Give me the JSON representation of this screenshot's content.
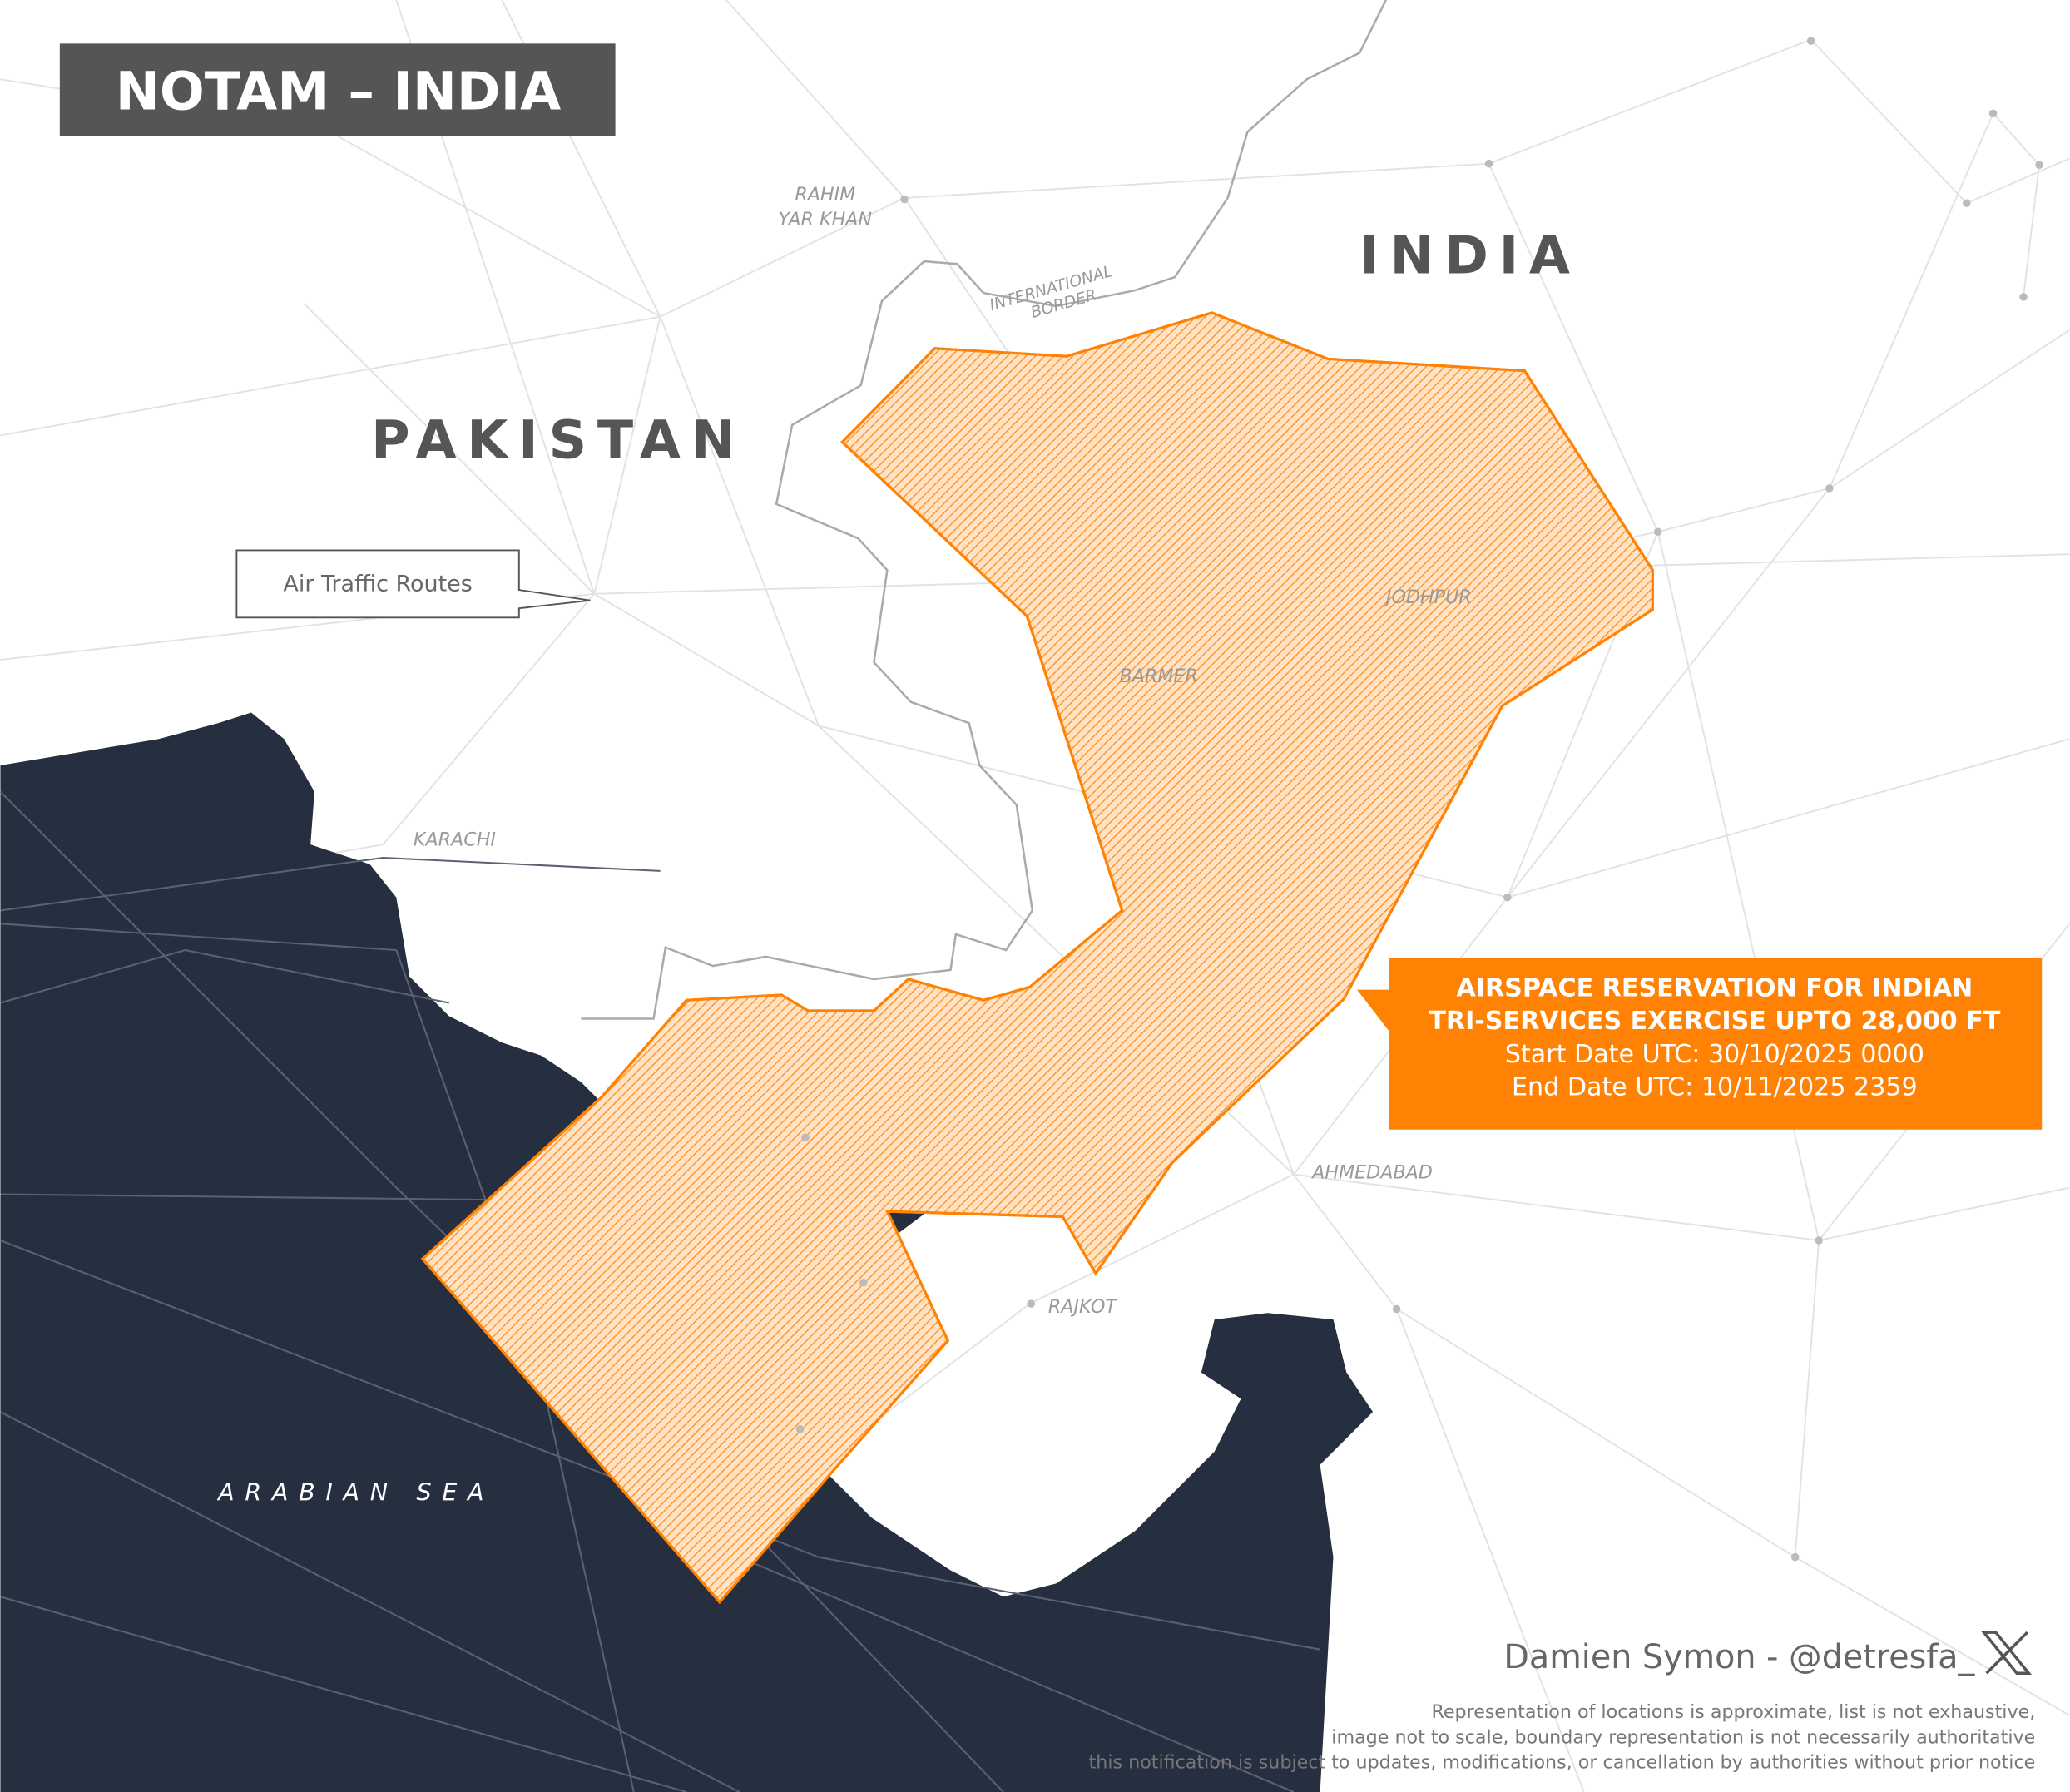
{
  "title": "NOTAM – INDIA",
  "countries": {
    "india": "INDIA",
    "pakistan": "PAKISTAN"
  },
  "sea": "ARABIAN SEA",
  "cities": [
    "RAHIM",
    "YAR KHAN",
    "JODHPUR",
    "BARMER",
    "KARACHI",
    "AHMEDABAD",
    "RAJKOT"
  ],
  "border_label": [
    "INTERNATIONAL",
    "BORDER"
  ],
  "routes_label": "Air Traffic Routes",
  "notice": {
    "line1": "AIRSPACE RESERVATION FOR INDIAN",
    "line2": "TRI-SERVICES EXERCISE UPTO 28,000 FT",
    "start": "Start Date UTC: 30/10/2025 0000",
    "end": "End Date UTC: 10/11/2025 2359"
  },
  "credit": "Damien Symon - @detresfa_",
  "credit_icon": "x-logo-icon",
  "disclaimer": [
    "Representation of locations is approximate, list is not exhaustive,",
    "image not to scale, boundary representation is not necessarily authoritative",
    "this notification is subject to updates, modifications, or cancellation by authorities without prior notice"
  ],
  "colors": {
    "accent": "#ff8205",
    "sea": "#262f3f",
    "title_bg": "#555555",
    "text": "#555555"
  }
}
